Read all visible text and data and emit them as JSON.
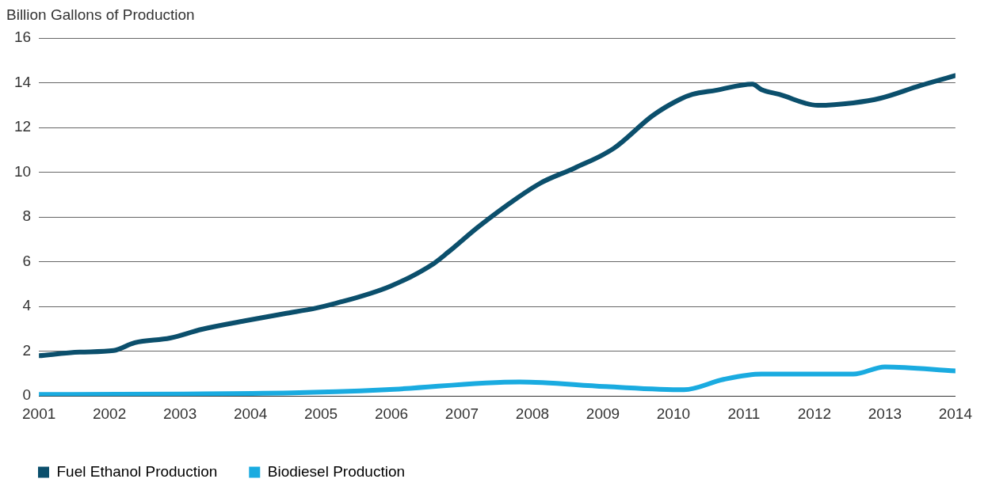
{
  "chart_data": {
    "type": "line",
    "ylabel": "Billion Gallons of Production",
    "xlim": [
      2001,
      2014
    ],
    "xticks": [
      2001,
      2002,
      2003,
      2004,
      2005,
      2006,
      2007,
      2008,
      2009,
      2010,
      2011,
      2012,
      2013,
      2014
    ],
    "ylim": [
      0,
      16
    ],
    "yticks": [
      0,
      2,
      4,
      6,
      8,
      10,
      12,
      14,
      16
    ],
    "grid": "y",
    "legend": "bottom left",
    "marker": "none",
    "line_style": "solid",
    "series": [
      {
        "name": "Fuel Ethanol Production",
        "color": "#0b4f6c",
        "x": [
          2001,
          2001.58,
          2002.06,
          2002.36,
          2002.86,
          2003.31,
          2003.92,
          2004.48,
          2004.92,
          2005.2,
          2005.98,
          2006.6,
          2006.81,
          2007.26,
          2008.1,
          2008.6,
          2009.15,
          2009.71,
          2010.08,
          2010.27,
          2010.6,
          2011.12,
          2011.25,
          2011.5,
          2012.05,
          2012.55,
          2012.94,
          2013.5,
          2014
        ],
        "values": [
          1.8,
          1.96,
          2.03,
          2.38,
          2.59,
          2.98,
          3.36,
          3.68,
          3.92,
          4.13,
          4.9,
          5.92,
          6.44,
          7.63,
          9.49,
          10.19,
          11.06,
          12.54,
          13.24,
          13.48,
          13.66,
          13.94,
          13.69,
          13.48,
          12.99,
          13.1,
          13.31,
          13.87,
          14.32
        ]
      },
      {
        "name": "Biodiesel Production",
        "color": "#1aabe0",
        "x": [
          2001,
          2004.59,
          2005.92,
          2007.82,
          2009.04,
          2010.15,
          2010.71,
          2011.25,
          2012.55,
          2013.0,
          2014
        ],
        "values": [
          0.07,
          0.14,
          0.28,
          0.63,
          0.42,
          0.28,
          0.74,
          0.98,
          0.98,
          1.3,
          1.12
        ]
      }
    ]
  }
}
